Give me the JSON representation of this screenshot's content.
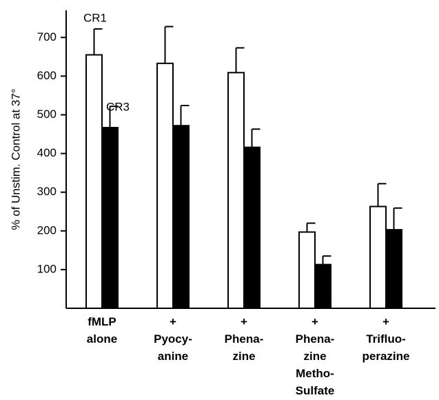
{
  "chart_data": {
    "type": "bar",
    "y_label": "% of Unstim. Control at 37°",
    "categories": [
      "fMLP\nalone",
      "+\nPyocy-\nanine",
      "+\nPhena-\nzine",
      "+\nPhena-\nzine\nMetho-\nSulfate",
      "+\nTrifluo-\nperazine"
    ],
    "series": [
      {
        "name": "CR1",
        "color": "#ffffff",
        "values": [
          655,
          633,
          609,
          197,
          263
        ],
        "errors": [
          67,
          95,
          64,
          23,
          59
        ]
      },
      {
        "name": "CR3",
        "color": "#000000",
        "values": [
          467,
          472,
          416,
          113,
          203
        ],
        "errors": [
          55,
          52,
          47,
          22,
          56
        ]
      }
    ],
    "ylim": [
      0,
      770
    ],
    "yticks": [
      100,
      200,
      300,
      400,
      500,
      600,
      700
    ],
    "grid": false
  }
}
